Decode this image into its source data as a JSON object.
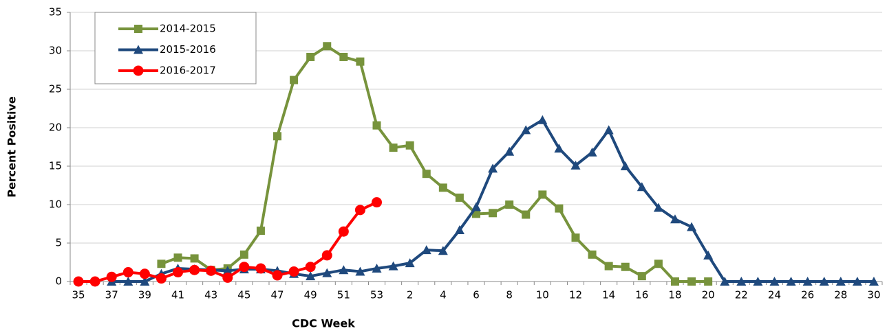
{
  "chart_data": {
    "type": "line",
    "x_label": "CDC Week",
    "y_label": "Percent Positive",
    "categories": [
      35,
      null,
      37,
      null,
      39,
      null,
      41,
      null,
      43,
      null,
      45,
      null,
      47,
      null,
      49,
      null,
      51,
      null,
      53,
      null,
      2,
      null,
      4,
      null,
      6,
      null,
      8,
      null,
      10,
      null,
      12,
      null,
      14,
      null,
      16,
      null,
      18,
      null,
      20,
      null,
      22,
      null,
      24,
      null,
      26,
      null,
      28,
      null,
      30
    ],
    "series": [
      {
        "name": "2014-2015",
        "color": "#77933c",
        "marker": "square",
        "values": [
          null,
          null,
          null,
          null,
          null,
          2.3,
          3.1,
          3.0,
          1.5,
          1.7,
          3.5,
          6.6,
          18.9,
          26.2,
          29.2,
          30.6,
          29.2,
          28.6,
          20.3,
          17.4,
          17.7,
          14.0,
          12.2,
          10.9,
          8.8,
          8.9,
          10.0,
          8.7,
          11.3,
          9.5,
          5.7,
          3.5,
          2.0,
          1.9,
          0.7,
          2.3,
          0,
          0,
          0,
          null,
          null,
          null,
          null,
          null,
          null,
          null,
          null,
          null,
          null
        ]
      },
      {
        "name": "2015-2016",
        "color": "#1f497d",
        "marker": "triangle",
        "values": [
          null,
          null,
          0,
          0,
          0,
          1.0,
          1.7,
          1.6,
          1.5,
          1.4,
          1.6,
          1.6,
          1.4,
          1.0,
          0.7,
          1.1,
          1.5,
          1.3,
          1.7,
          2.0,
          2.4,
          4.1,
          4.0,
          6.7,
          9.7,
          14.7,
          16.9,
          19.7,
          21.0,
          17.3,
          15.1,
          16.8,
          19.7,
          15.0,
          12.3,
          9.6,
          8.1,
          7.1,
          3.4,
          0,
          0,
          0,
          0,
          0,
          0,
          0,
          0,
          0,
          0
        ]
      },
      {
        "name": "2016-2017",
        "color": "#ff0000",
        "marker": "circle",
        "values": [
          0,
          0,
          0.6,
          1.2,
          1.0,
          0.4,
          1.2,
          1.5,
          1.4,
          0.5,
          1.9,
          1.7,
          0.8,
          1.3,
          1.9,
          3.4,
          6.5,
          9.3,
          10.3,
          null,
          null,
          null,
          null,
          null,
          null,
          null,
          null,
          null,
          null,
          null,
          null,
          null,
          null,
          null,
          null,
          null,
          null,
          null,
          null,
          null,
          null,
          null,
          null,
          null,
          null,
          null,
          null,
          null,
          null
        ]
      }
    ],
    "ylim": [
      0,
      35
    ],
    "yticks": [
      0,
      5,
      10,
      15,
      20,
      25,
      30,
      35
    ],
    "grid": true,
    "legend": "top-left"
  }
}
